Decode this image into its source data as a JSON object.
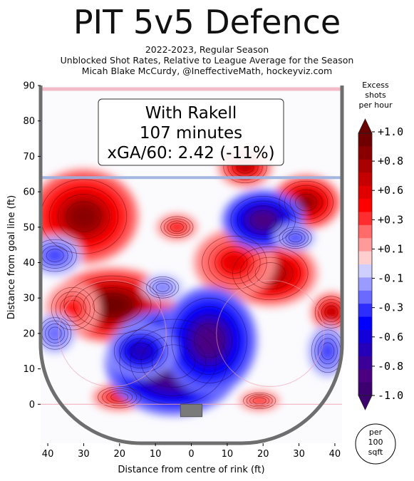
{
  "title": "PIT 5v5 Defence",
  "subtitle": [
    "2022-2023, Regular Season",
    "Unblocked Shot Rates, Relative to League Average for the Season",
    "Micah Blake McCurdy, @IneffectiveMath, hockeyviz.com"
  ],
  "chart_data": {
    "type": "heatmap",
    "xlabel": "Distance from centre of rink (ft)",
    "ylabel": "Distance from goal line (ft)",
    "xlim": [
      -42,
      42
    ],
    "ylim": [
      -11,
      90
    ],
    "x_ticks": [
      -40,
      -30,
      -20,
      -10,
      0,
      10,
      20,
      30,
      40
    ],
    "x_tick_labels": [
      "40",
      "30",
      "20",
      "10",
      "0",
      "10",
      "20",
      "30",
      "40"
    ],
    "y_ticks": [
      0,
      10,
      20,
      30,
      40,
      50,
      60,
      70,
      80,
      90
    ],
    "y_tick_labels": [
      "0",
      "10",
      "20",
      "30",
      "40",
      "50",
      "60",
      "70",
      "80",
      "90"
    ],
    "annotation": {
      "line1": "With Rakell",
      "line2": "107 minutes",
      "line3": "xGA/60: 2.42 (-11%)"
    },
    "colorbar": {
      "title_lines": [
        "Excess",
        "shots",
        "per hour"
      ],
      "tick_labels": [
        "+1.0",
        "+0.8",
        "+0.6",
        "+0.3",
        "+0.1",
        "-0.1",
        "-0.3",
        "-0.6",
        "-0.8",
        "-1.0"
      ],
      "unit_lines": [
        "per",
        "100",
        "sqft"
      ]
    },
    "hotspots": [
      {
        "x": -30,
        "y": 53,
        "rx": 8,
        "ry": 7,
        "value": 0.85
      },
      {
        "x": -22,
        "y": 28,
        "rx": 9,
        "ry": 5.5,
        "value": 0.95
      },
      {
        "x": -33,
        "y": 27,
        "rx": 4,
        "ry": 4,
        "value": 0.4
      },
      {
        "x": 15,
        "y": 67,
        "rx": 4,
        "ry": 3,
        "value": 0.7
      },
      {
        "x": 32,
        "y": 57,
        "rx": 5,
        "ry": 4,
        "value": 0.8
      },
      {
        "x": 22,
        "y": 37,
        "rx": 7,
        "ry": 5,
        "value": 0.75
      },
      {
        "x": 12,
        "y": 40,
        "rx": 6,
        "ry": 5,
        "value": 0.5
      },
      {
        "x": 39,
        "y": 26,
        "rx": 3,
        "ry": 3,
        "value": 0.7
      },
      {
        "x": -20,
        "y": 2,
        "rx": 4,
        "ry": 2,
        "value": 0.5
      },
      {
        "x": 19,
        "y": 1,
        "rx": 3,
        "ry": 1.5,
        "value": 0.4
      },
      {
        "x": -4,
        "y": 50,
        "rx": 3,
        "ry": 2,
        "value": 0.45
      },
      {
        "x": 20,
        "y": 52,
        "rx": 6,
        "ry": 4.5,
        "value": -0.85
      },
      {
        "x": -5,
        "y": 12,
        "rx": 10,
        "ry": 8,
        "value": -1.0
      },
      {
        "x": 5,
        "y": 18,
        "rx": 7,
        "ry": 8,
        "value": -0.85
      },
      {
        "x": -14,
        "y": 15,
        "rx": 5,
        "ry": 4,
        "value": -0.6
      },
      {
        "x": -38,
        "y": 42,
        "rx": 4,
        "ry": 3,
        "value": -0.3
      },
      {
        "x": -38,
        "y": 20,
        "rx": 3,
        "ry": 3,
        "value": -0.25
      },
      {
        "x": 29,
        "y": 47,
        "rx": 3,
        "ry": 2,
        "value": -0.3
      },
      {
        "x": 38,
        "y": 15,
        "rx": 3,
        "ry": 4,
        "value": -0.3
      },
      {
        "x": -8,
        "y": 33,
        "rx": 3,
        "ry": 2,
        "value": -0.2
      }
    ]
  },
  "colors": {
    "diverging_positive": [
      "#ffcfcf",
      "#ff9a9a",
      "#ff6a6a",
      "#ff2d2d",
      "#ff0000",
      "#e00000",
      "#c40000",
      "#a80000",
      "#8a0000",
      "#700000"
    ],
    "diverging_negative": [
      "#cfcfff",
      "#9a9aff",
      "#6a6aff",
      "#2d2dff",
      "#0000ff",
      "#1400d8",
      "#2400b8",
      "#3a0098",
      "#4b0082",
      "#3c0070"
    ],
    "rink_board": "#6e6e6e",
    "goal_line": "#f0a0b0",
    "blue_line": "#9ab0e0"
  }
}
